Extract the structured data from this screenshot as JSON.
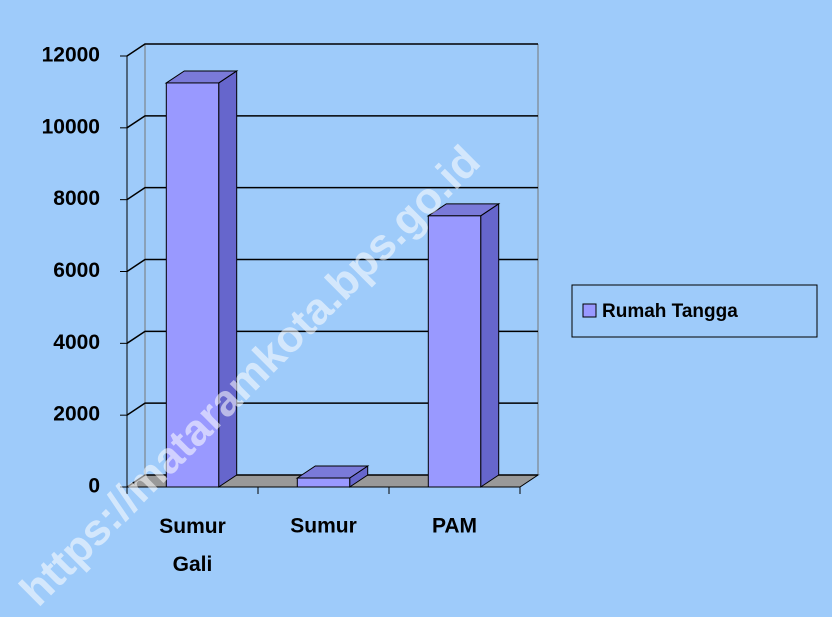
{
  "chart_data": {
    "type": "bar3d",
    "categories": [
      "Sumur Gali",
      "Sumur",
      "PAM"
    ],
    "series": [
      {
        "name": "Rumah Tangga",
        "color": "#9999ff",
        "values": [
          11250,
          250,
          7550
        ]
      }
    ],
    "ylim": [
      0,
      12000
    ],
    "yticks": [
      0,
      2000,
      4000,
      6000,
      8000,
      10000,
      12000
    ],
    "grid": true,
    "legend": "right",
    "watermark": "https://mataramkota.bps.go.id"
  }
}
